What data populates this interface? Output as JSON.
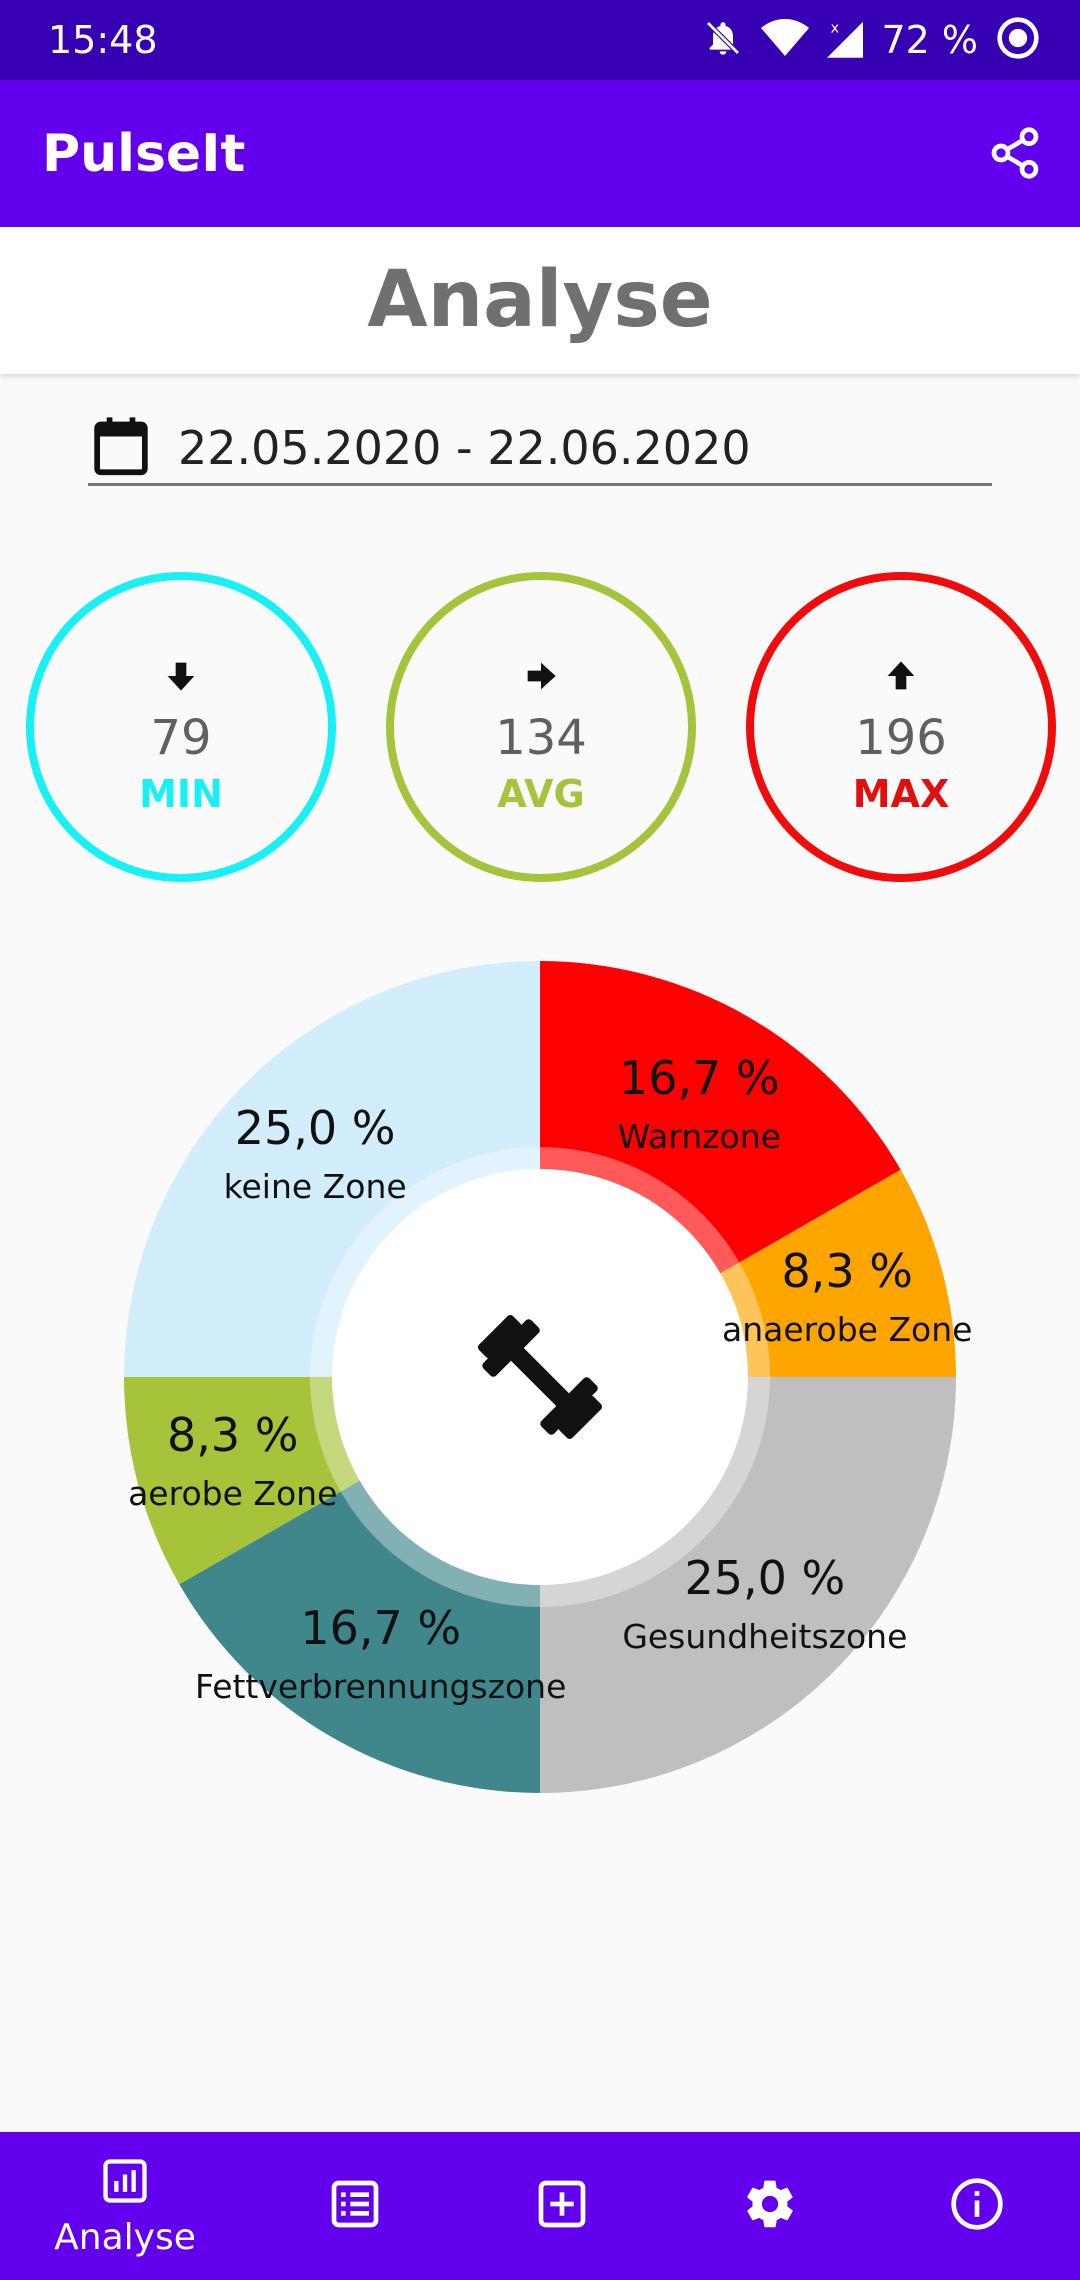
{
  "status_bar": {
    "time": "15:48",
    "battery": "72 %",
    "icons": [
      "bell-off-icon",
      "wifi-icon",
      "signal-icon",
      "record-icon"
    ]
  },
  "app_bar": {
    "title": "PulseIt",
    "action_icon": "share-icon"
  },
  "page": {
    "title": "Analyse"
  },
  "date_range": {
    "value": "22.05.2020 - 22.06.2020",
    "icon": "calendar-icon"
  },
  "stats": {
    "min": {
      "value": "79",
      "label": "MIN",
      "color": "#18f0f5",
      "icon": "arrow-down-icon"
    },
    "avg": {
      "value": "134",
      "label": "AVG",
      "color": "#a4c43c",
      "icon": "arrow-right-icon"
    },
    "max": {
      "value": "196",
      "label": "MAX",
      "color": "#ee0c0c",
      "icon": "arrow-up-icon"
    }
  },
  "chart_data": {
    "type": "pie",
    "center_icon": "dumbbell-icon",
    "categories": [
      "Warnzone",
      "anaerobe Zone",
      "Gesundheitszone",
      "Fettverbrennungszone",
      "aerobe Zone",
      "keine Zone"
    ],
    "values": [
      16.7,
      8.3,
      25.0,
      16.7,
      8.3,
      25.0
    ],
    "labels": [
      "16,7 %",
      "8,3 %",
      "25,0 %",
      "16,7 %",
      "8,3 %",
      "25,0 %"
    ],
    "colors": [
      "#ff0000",
      "#ffa500",
      "#bfbfbf",
      "#40878b",
      "#a5c43a",
      "#d2edfb"
    ]
  },
  "bottom_nav": {
    "items": [
      {
        "label": "Analyse",
        "icon": "chart-icon",
        "selected": true
      },
      {
        "label": "",
        "icon": "list-icon"
      },
      {
        "label": "",
        "icon": "add-box-icon"
      },
      {
        "label": "",
        "icon": "gear-icon"
      },
      {
        "label": "",
        "icon": "info-icon"
      }
    ]
  }
}
